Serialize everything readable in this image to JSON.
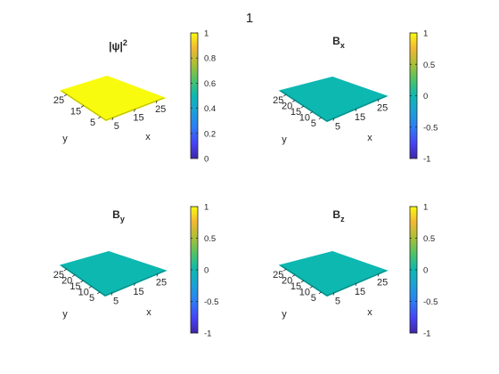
{
  "figure": {
    "title": "1",
    "background": "#ffffff"
  },
  "chart_data": [
    {
      "type": "surface3d",
      "title": {
        "text": "|ψ|",
        "sup": "2",
        "sub": ""
      },
      "xlabel": "x",
      "ylabel": "y",
      "x_ticks": [
        "5",
        "15",
        "25"
      ],
      "y_ticks": [
        "5",
        "15",
        "25"
      ],
      "surface_value": 1,
      "clim": [
        0,
        1
      ],
      "colorbar_ticks": [
        "0",
        "0.2",
        "0.4",
        "0.6",
        "0.8",
        "1"
      ],
      "colormap": "parula"
    },
    {
      "type": "surface3d",
      "title": {
        "text": "B",
        "sup": "",
        "sub": "x"
      },
      "xlabel": "x",
      "ylabel": "y",
      "x_ticks": [
        "5",
        "15",
        "25"
      ],
      "y_ticks": [
        "5",
        "10",
        "15",
        "20",
        "25"
      ],
      "surface_value": 0,
      "clim": [
        -1,
        1
      ],
      "colorbar_ticks": [
        "-1",
        "-0.5",
        "0",
        "0.5",
        "1"
      ],
      "colormap": "parula"
    },
    {
      "type": "surface3d",
      "title": {
        "text": "B",
        "sup": "",
        "sub": "y"
      },
      "xlabel": "x",
      "ylabel": "y",
      "x_ticks": [
        "5",
        "15",
        "25"
      ],
      "y_ticks": [
        "5",
        "10",
        "15",
        "20",
        "25"
      ],
      "surface_value": 0,
      "clim": [
        -1,
        1
      ],
      "colorbar_ticks": [
        "-1",
        "-0.5",
        "0",
        "0.5",
        "1"
      ],
      "colormap": "parula"
    },
    {
      "type": "surface3d",
      "title": {
        "text": "B",
        "sup": "",
        "sub": "z"
      },
      "xlabel": "x",
      "ylabel": "y",
      "x_ticks": [
        "5",
        "15",
        "25"
      ],
      "y_ticks": [
        "5",
        "10",
        "15",
        "20",
        "25"
      ],
      "surface_value": 0,
      "clim": [
        -1,
        1
      ],
      "colorbar_ticks": [
        "-1",
        "-0.5",
        "0",
        "0.5",
        "1"
      ],
      "colormap": "parula"
    }
  ]
}
